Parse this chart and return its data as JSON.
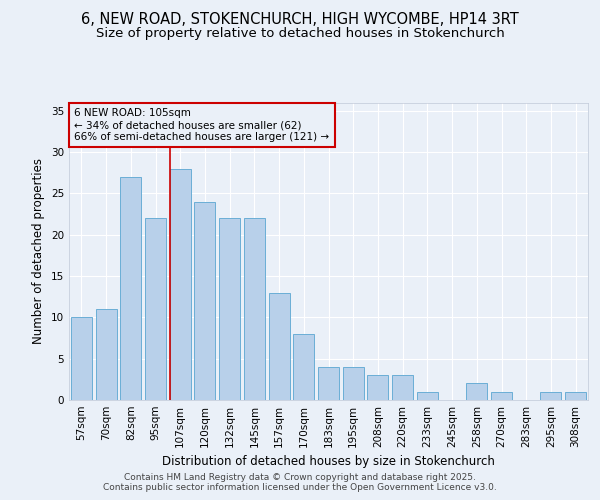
{
  "title_line1": "6, NEW ROAD, STOKENCHURCH, HIGH WYCOMBE, HP14 3RT",
  "title_line2": "Size of property relative to detached houses in Stokenchurch",
  "xlabel": "Distribution of detached houses by size in Stokenchurch",
  "ylabel": "Number of detached properties",
  "categories": [
    "57sqm",
    "70sqm",
    "82sqm",
    "95sqm",
    "107sqm",
    "120sqm",
    "132sqm",
    "145sqm",
    "157sqm",
    "170sqm",
    "183sqm",
    "195sqm",
    "208sqm",
    "220sqm",
    "233sqm",
    "245sqm",
    "258sqm",
    "270sqm",
    "283sqm",
    "295sqm",
    "308sqm"
  ],
  "values": [
    10,
    11,
    27,
    22,
    28,
    24,
    22,
    22,
    13,
    8,
    4,
    4,
    3,
    3,
    1,
    0,
    2,
    1,
    0,
    1,
    1
  ],
  "bar_color": "#b8d0ea",
  "bar_edge_color": "#6aaed6",
  "highlight_bar_index": 4,
  "highlight_color": "#cc0000",
  "annotation_title": "6 NEW ROAD: 105sqm",
  "annotation_line1": "← 34% of detached houses are smaller (62)",
  "annotation_line2": "66% of semi-detached houses are larger (121) →",
  "ylim": [
    0,
    36
  ],
  "yticks": [
    0,
    5,
    10,
    15,
    20,
    25,
    30,
    35
  ],
  "footer_line1": "Contains HM Land Registry data © Crown copyright and database right 2025.",
  "footer_line2": "Contains public sector information licensed under the Open Government Licence v3.0.",
  "bg_color": "#eaf0f8",
  "grid_color": "#ffffff",
  "title_fontsize": 10.5,
  "subtitle_fontsize": 9.5,
  "axis_label_fontsize": 8.5,
  "tick_fontsize": 7.5,
  "footer_fontsize": 6.5,
  "annotation_fontsize": 7.5
}
